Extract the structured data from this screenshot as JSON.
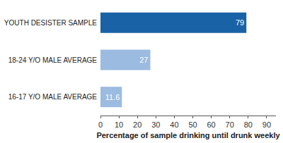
{
  "chart_data": {
    "type": "bar",
    "orientation": "horizontal",
    "categories": [
      "YOUTH DESISTER SAMPLE",
      "18-24 Y/O MALE AVERAGE",
      "16-17 Y/O MALE AVERAGE"
    ],
    "values": [
      79,
      27,
      11.6
    ],
    "colors": [
      "#1a62a6",
      "#9bbbe0",
      "#9bbbe0"
    ],
    "x_label": "Percentage of sample drinking until drunk weekly",
    "xlim": [
      0,
      95
    ],
    "xticks": [
      0,
      10,
      20,
      30,
      40,
      50,
      60,
      70,
      80,
      90
    ],
    "grid": false,
    "data_labels": true
  }
}
